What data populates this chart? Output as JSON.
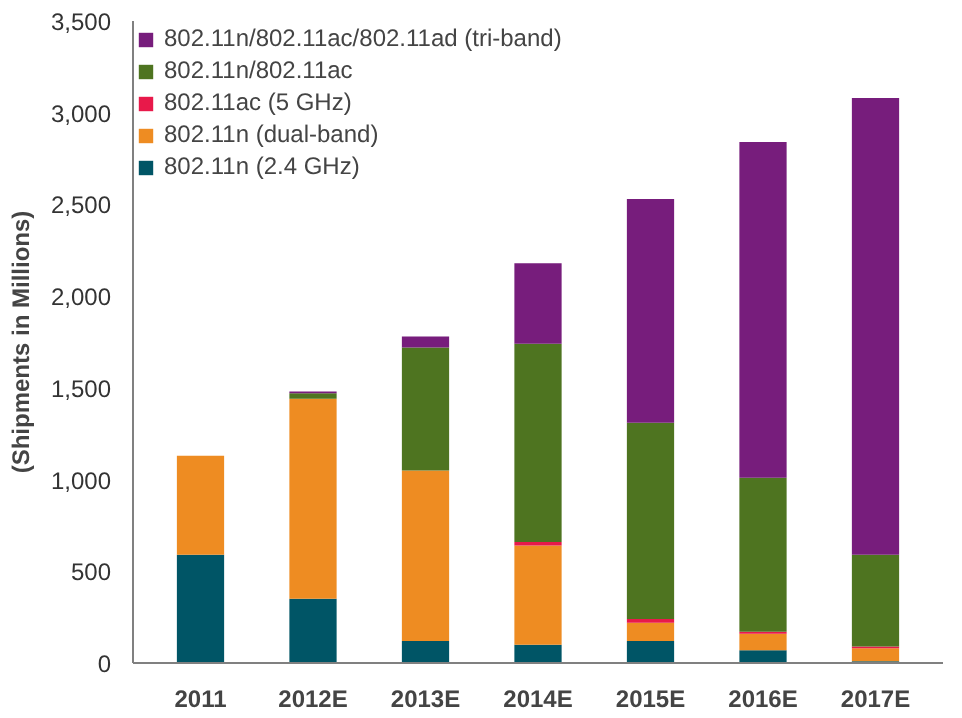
{
  "chart_data": {
    "type": "bar",
    "stacked": true,
    "ylabel": "(Shipments in Millions)",
    "categories": [
      "2011",
      "2012E",
      "2013E",
      "2014E",
      "2015E",
      "2016E",
      "2017E"
    ],
    "series": [
      {
        "name": "802.11n (2.4 GHz)",
        "color": "#005566",
        "values": [
          590,
          350,
          120,
          100,
          120,
          70,
          10
        ]
      },
      {
        "name": "802.11n (dual-band)",
        "color": "#ee8c22",
        "values": [
          540,
          1090,
          930,
          540,
          100,
          90,
          70
        ]
      },
      {
        "name": "802.11ac (5 GHz)",
        "color": "#e8194a",
        "values": [
          0,
          0,
          0,
          20,
          20,
          10,
          10
        ]
      },
      {
        "name": "802.11n/802.11ac",
        "color": "#4e7420",
        "values": [
          0,
          30,
          670,
          1080,
          1070,
          840,
          500
        ]
      },
      {
        "name": "802.11n/802.11ac/802.11ad (tri-band)",
        "color": "#771d7c",
        "values": [
          0,
          10,
          60,
          440,
          1220,
          1830,
          2490
        ]
      }
    ],
    "ylim": [
      0,
      3500
    ],
    "yticks": [
      {
        "value": 0,
        "label": "0"
      },
      {
        "value": 500,
        "label": "500"
      },
      {
        "value": 1000,
        "label": "1,000"
      },
      {
        "value": 1500,
        "label": "1,500"
      },
      {
        "value": 2000,
        "label": "2,000"
      },
      {
        "value": 2500,
        "label": "2,500"
      },
      {
        "value": 3000,
        "label": "3,000"
      },
      {
        "value": 3500,
        "label": "3,500"
      }
    ],
    "grid": false,
    "legend": "top left"
  }
}
